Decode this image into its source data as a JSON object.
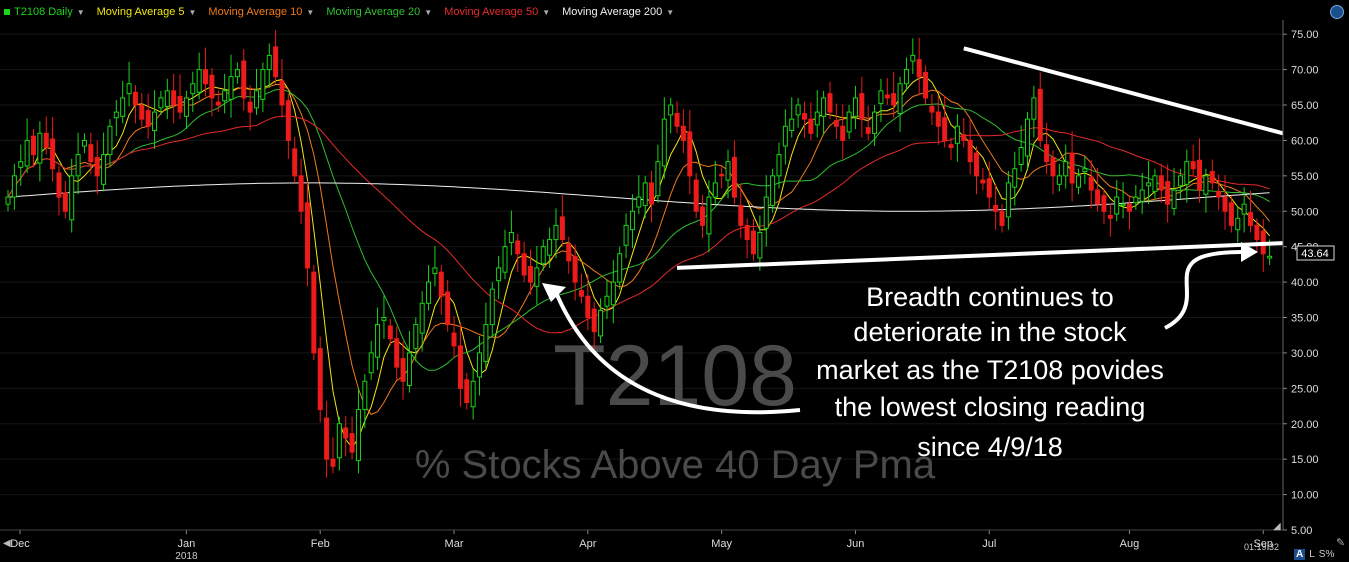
{
  "header": {
    "symbol_label": "T2108 Daily",
    "indicators": [
      {
        "label": "Moving Average 5",
        "color": "#f2e70f"
      },
      {
        "label": "Moving Average 10",
        "color": "#f07a1a"
      },
      {
        "label": "Moving Average 20",
        "color": "#2fbf2f"
      },
      {
        "label": "Moving Average 50",
        "color": "#e52a2a"
      },
      {
        "label": "Moving Average 200",
        "color": "#f0f0f0"
      }
    ]
  },
  "watermark": {
    "symbol": "T2108",
    "description": "% Stocks Above 40 Day Pma"
  },
  "annotation": {
    "lines": [
      "Breadth continues to",
      "deteriorate in the stock",
      "market as the T2108 povides",
      "the lowest closing reading",
      "since 4/9/18"
    ]
  },
  "footer": {
    "time": "01:19:32",
    "controls": [
      "A",
      "L",
      "S%"
    ]
  },
  "colors": {
    "up": "#19d419",
    "down": "#ee1b1b",
    "background": "#000000"
  },
  "chart_data": {
    "type": "candlestick",
    "y_ticks": [
      "75.00",
      "70.00",
      "65.00",
      "60.00",
      "55.00",
      "50.00",
      "45.00",
      "40.00",
      "35.00",
      "30.00",
      "25.00",
      "20.00",
      "15.00",
      "10.00",
      "5.00"
    ],
    "ylim": [
      5,
      77
    ],
    "x_labels": [
      "Dec",
      "Jan",
      "Feb",
      "Mar",
      "Apr",
      "May",
      "Jun",
      "Jul",
      "Aug",
      "Sep"
    ],
    "x_sublabel": "2018",
    "last_value": "43.64",
    "trendlines": [
      {
        "from": [
          150,
          73
        ],
        "to": [
          199,
          61
        ],
        "label": "resistance"
      },
      {
        "from": [
          105,
          42
        ],
        "to": [
          199,
          45.5
        ],
        "label": "support"
      }
    ],
    "closes": [
      52,
      55,
      57,
      60,
      58,
      61,
      59,
      56,
      52,
      50,
      55,
      58,
      60,
      57,
      55,
      58,
      62,
      64,
      66,
      68,
      65,
      63,
      62,
      64,
      66,
      67,
      65,
      64,
      66,
      68,
      70,
      68,
      66,
      65,
      67,
      69,
      70,
      66,
      64,
      67,
      70,
      72,
      69,
      65,
      60,
      55,
      50,
      42,
      30,
      22,
      15,
      14,
      20,
      18,
      16,
      22,
      26,
      30,
      34,
      35,
      32,
      28,
      26,
      30,
      34,
      37,
      40,
      42,
      38,
      34,
      31,
      25,
      23,
      26,
      30,
      34,
      39,
      42,
      45,
      47,
      44,
      41,
      40,
      42,
      45,
      46,
      48,
      46,
      43,
      40,
      38,
      35,
      33,
      36,
      38,
      40,
      44,
      48,
      50,
      52,
      54,
      51,
      57,
      63,
      65,
      62,
      60,
      55,
      50,
      48,
      52,
      54,
      55,
      57,
      52,
      48,
      46,
      44,
      47,
      52,
      55,
      58,
      62,
      63,
      65,
      63,
      61,
      64,
      66,
      64,
      62,
      60,
      64,
      66,
      63,
      61,
      64,
      67,
      66,
      65,
      68,
      70,
      72,
      69,
      66,
      64,
      62,
      60,
      59,
      62,
      60,
      57,
      55,
      54,
      52,
      50,
      48,
      54,
      56,
      59,
      63,
      66,
      60,
      57,
      55,
      55,
      57,
      54,
      55,
      56,
      53,
      51,
      50,
      49,
      52,
      51,
      50,
      52,
      53,
      54,
      55,
      53,
      51,
      53,
      55,
      57,
      56,
      53,
      55,
      54,
      52,
      50,
      48,
      49,
      51,
      48,
      46,
      44,
      43.64
    ]
  }
}
